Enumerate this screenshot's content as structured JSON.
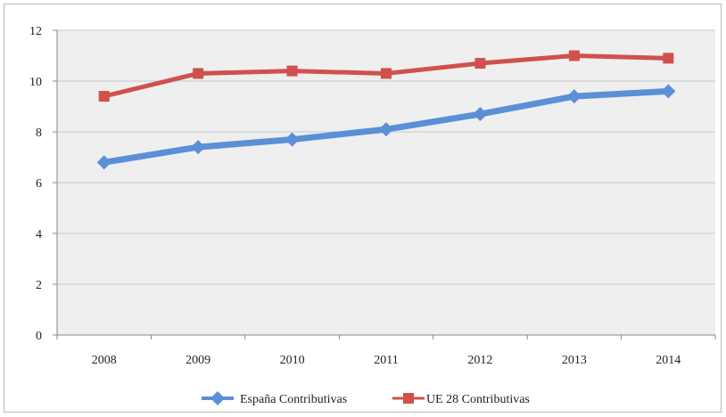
{
  "chart_data": {
    "type": "line",
    "categories": [
      "2008",
      "2009",
      "2010",
      "2011",
      "2012",
      "2013",
      "2014"
    ],
    "series": [
      {
        "name": "España Contributivas",
        "values": [
          6.8,
          7.4,
          7.7,
          8.1,
          8.7,
          9.4,
          9.6
        ],
        "color": "#5b8fd6",
        "marker": "diamond"
      },
      {
        "name": "UE 28 Contributivas",
        "values": [
          9.4,
          10.3,
          10.4,
          10.3,
          10.7,
          11.0,
          10.9
        ],
        "color": "#d0504d",
        "marker": "square"
      }
    ],
    "y_ticks": [
      "0",
      "2",
      "4",
      "6",
      "8",
      "10",
      "12"
    ],
    "ylim": [
      0,
      12
    ],
    "grid": true,
    "plot_background": "#efefef",
    "gridline_color": "#c8c8c8",
    "legend_position": "bottom"
  }
}
